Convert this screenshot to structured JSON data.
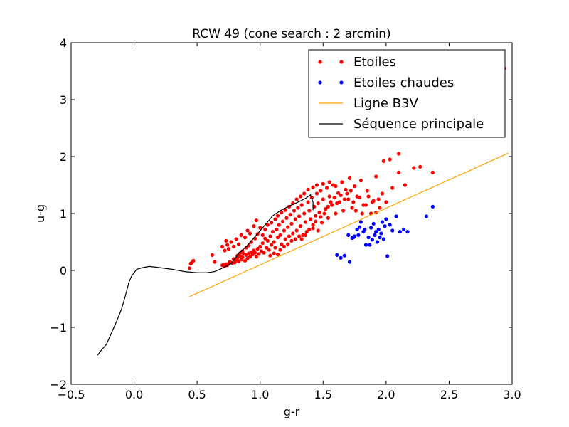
{
  "chart_data": {
    "type": "scatter",
    "title": "RCW 49 (cone search : 2 arcmin)",
    "xlabel": "g-r",
    "ylabel": "u-g",
    "xlim": [
      -0.5,
      3.0
    ],
    "ylim": [
      4,
      -2
    ],
    "y_inverted": true,
    "xticks": [
      -0.5,
      0.0,
      0.5,
      1.0,
      1.5,
      2.0,
      2.5,
      3.0
    ],
    "yticks": [
      -2,
      -1,
      0,
      1,
      2,
      3,
      4
    ],
    "xtick_labels": [
      "−0.5",
      "0.0",
      "0.5",
      "1.0",
      "1.5",
      "2.0",
      "2.5",
      "3.0"
    ],
    "ytick_labels": [
      "−2",
      "−1",
      "0",
      "1",
      "2",
      "3",
      "4"
    ],
    "grid": false,
    "legend_position": "top-right",
    "legend": [
      {
        "label": "Etoiles",
        "kind": "markers",
        "color": "#ff0000"
      },
      {
        "label": "Etoiles chaudes",
        "kind": "markers",
        "color": "#0000ff"
      },
      {
        "label": "Ligne B3V",
        "kind": "line",
        "color": "#ffa500"
      },
      {
        "label": "Séquence principale",
        "kind": "line",
        "color": "#000000"
      }
    ],
    "series": [
      {
        "name": "Etoiles",
        "kind": "scatter",
        "color": "#ff0000",
        "points": [
          [
            0.44,
            0.04
          ],
          [
            0.45,
            0.12
          ],
          [
            0.46,
            0.14
          ],
          [
            0.47,
            0.17
          ],
          [
            0.62,
            0.27
          ],
          [
            0.64,
            0.15
          ],
          [
            0.7,
            0.09
          ],
          [
            0.71,
            0.1
          ],
          [
            0.72,
            0.08
          ],
          [
            0.73,
            0.11
          ],
          [
            0.74,
            0.09
          ],
          [
            0.75,
            0.12
          ],
          [
            0.76,
            0.15
          ],
          [
            0.78,
            0.13
          ],
          [
            0.79,
            0.2
          ],
          [
            0.8,
            0.14
          ],
          [
            0.81,
            0.18
          ],
          [
            0.82,
            0.22
          ],
          [
            0.83,
            0.16
          ],
          [
            0.84,
            0.25
          ],
          [
            0.85,
            0.19
          ],
          [
            0.86,
            0.23
          ],
          [
            0.87,
            0.29
          ],
          [
            0.88,
            0.17
          ],
          [
            0.89,
            0.27
          ],
          [
            0.9,
            0.21
          ],
          [
            0.91,
            0.3
          ],
          [
            0.92,
            0.24
          ],
          [
            0.93,
            0.32
          ],
          [
            0.94,
            0.28
          ],
          [
            0.95,
            0.35
          ],
          [
            0.96,
            0.31
          ],
          [
            0.97,
            0.24
          ],
          [
            0.98,
            0.38
          ],
          [
            0.99,
            0.29
          ],
          [
            1.0,
            0.42
          ],
          [
            1.01,
            0.34
          ],
          [
            1.02,
            0.48
          ],
          [
            1.03,
            0.31
          ],
          [
            1.04,
            0.56
          ],
          [
            1.05,
            0.4
          ],
          [
            1.06,
            0.52
          ],
          [
            1.07,
            0.36
          ],
          [
            1.08,
            0.6
          ],
          [
            1.09,
            0.45
          ],
          [
            1.1,
            0.68
          ],
          [
            1.11,
            0.5
          ],
          [
            1.12,
            0.4
          ],
          [
            1.13,
            0.72
          ],
          [
            1.14,
            0.58
          ],
          [
            1.15,
            0.8
          ],
          [
            1.16,
            0.62
          ],
          [
            1.17,
            0.46
          ],
          [
            1.18,
            0.86
          ],
          [
            1.19,
            0.7
          ],
          [
            1.2,
            0.55
          ],
          [
            1.21,
            0.92
          ],
          [
            1.22,
            0.76
          ],
          [
            1.23,
            0.6
          ],
          [
            1.24,
            0.98
          ],
          [
            1.25,
            0.82
          ],
          [
            1.26,
            0.65
          ],
          [
            1.27,
            1.05
          ],
          [
            1.28,
            0.9
          ],
          [
            1.29,
            0.7
          ],
          [
            1.3,
            1.1
          ],
          [
            1.31,
            0.95
          ],
          [
            1.32,
            0.78
          ],
          [
            1.33,
            1.15
          ],
          [
            1.34,
            0.62
          ],
          [
            1.35,
            1.0
          ],
          [
            1.36,
            0.85
          ],
          [
            1.37,
            0.68
          ],
          [
            1.38,
            1.2
          ],
          [
            1.39,
            1.05
          ],
          [
            1.4,
            0.9
          ],
          [
            1.41,
            1.28
          ],
          [
            1.42,
            0.74
          ],
          [
            1.43,
            1.12
          ],
          [
            1.44,
            0.96
          ],
          [
            1.45,
            1.35
          ],
          [
            1.46,
            1.18
          ],
          [
            1.47,
            1.02
          ],
          [
            1.48,
            1.4
          ],
          [
            1.49,
            0.84
          ],
          [
            1.5,
            1.25
          ],
          [
            1.52,
            1.08
          ],
          [
            1.53,
            1.45
          ],
          [
            1.54,
            0.92
          ],
          [
            1.55,
            1.3
          ],
          [
            1.57,
            1.15
          ],
          [
            1.58,
            1.5
          ],
          [
            1.6,
            1.0
          ],
          [
            1.62,
            1.36
          ],
          [
            1.63,
            1.2
          ],
          [
            1.65,
            1.55
          ],
          [
            1.66,
            1.05
          ],
          [
            1.68,
            1.42
          ],
          [
            1.7,
            1.25
          ],
          [
            1.71,
            1.62
          ],
          [
            1.73,
            1.1
          ],
          [
            1.75,
            1.48
          ],
          [
            1.77,
            1.3
          ],
          [
            1.8,
            1.58
          ],
          [
            1.82,
            1.15
          ],
          [
            1.85,
            1.4
          ],
          [
            1.88,
            1.0
          ],
          [
            1.9,
            1.22
          ],
          [
            1.92,
            1.65
          ],
          [
            1.95,
            1.1
          ],
          [
            1.97,
            1.35
          ],
          [
            2.0,
            1.2
          ],
          [
            2.05,
            1.45
          ],
          [
            2.1,
            1.72
          ],
          [
            2.15,
            1.5
          ],
          [
            1.98,
            1.92
          ],
          [
            2.03,
            1.95
          ],
          [
            2.1,
            2.05
          ],
          [
            2.22,
            1.8
          ],
          [
            2.27,
            1.82
          ],
          [
            2.37,
            1.72
          ],
          [
            2.56,
            3.02
          ],
          [
            2.87,
            3.67
          ],
          [
            2.94,
            3.55
          ],
          [
            0.72,
            0.35
          ],
          [
            0.74,
            0.45
          ],
          [
            0.75,
            0.38
          ],
          [
            0.77,
            0.5
          ],
          [
            0.79,
            0.42
          ],
          [
            0.81,
            0.55
          ],
          [
            0.83,
            0.46
          ],
          [
            0.85,
            0.62
          ],
          [
            0.88,
            0.58
          ],
          [
            0.9,
            0.7
          ],
          [
            0.92,
            0.65
          ],
          [
            0.95,
            0.78
          ],
          [
            0.97,
            0.88
          ],
          [
            0.7,
            0.42
          ],
          [
            0.73,
            0.52
          ],
          [
            1.0,
            0.75
          ],
          [
            1.02,
            0.62
          ],
          [
            1.08,
            0.26
          ],
          [
            1.11,
            0.3
          ],
          [
            1.14,
            0.28
          ],
          [
            1.16,
            0.36
          ],
          [
            1.19,
            0.42
          ],
          [
            1.22,
            0.46
          ],
          [
            1.25,
            0.52
          ],
          [
            1.28,
            0.55
          ],
          [
            1.31,
            0.6
          ],
          [
            1.33,
            0.55
          ],
          [
            1.36,
            0.62
          ],
          [
            1.39,
            0.72
          ],
          [
            1.42,
            0.8
          ],
          [
            1.44,
            0.86
          ],
          [
            1.46,
            0.7
          ],
          [
            1.48,
            0.94
          ],
          [
            1.51,
            1.0
          ],
          [
            1.54,
            1.12
          ],
          [
            1.56,
            1.2
          ],
          [
            1.59,
            1.28
          ],
          [
            1.61,
            1.18
          ],
          [
            1.64,
            1.32
          ],
          [
            1.67,
            1.25
          ],
          [
            1.69,
            1.35
          ],
          [
            1.72,
            1.4
          ],
          [
            1.74,
            1.2
          ],
          [
            1.76,
            1.05
          ],
          [
            1.79,
            1.28
          ],
          [
            1.81,
            1.0
          ],
          [
            1.84,
            1.15
          ],
          [
            1.86,
            1.3
          ],
          [
            1.89,
            1.2
          ],
          [
            1.92,
            1.02
          ],
          [
            1.94,
            1.25
          ],
          [
            1.6,
            1.48
          ],
          [
            1.55,
            1.55
          ],
          [
            1.5,
            1.52
          ],
          [
            1.45,
            1.5
          ],
          [
            1.42,
            1.46
          ],
          [
            1.38,
            1.42
          ],
          [
            1.35,
            1.35
          ],
          [
            1.32,
            1.3
          ],
          [
            1.29,
            1.25
          ],
          [
            1.26,
            1.18
          ],
          [
            1.23,
            1.12
          ],
          [
            1.2,
            1.06
          ],
          [
            1.17,
            1.02
          ],
          [
            1.14,
            0.96
          ],
          [
            1.12,
            0.9
          ],
          [
            1.09,
            0.84
          ],
          [
            1.06,
            0.8
          ],
          [
            1.04,
            0.72
          ],
          [
            0.98,
            0.64
          ],
          [
            0.96,
            0.56
          ],
          [
            0.93,
            0.5
          ],
          [
            0.91,
            0.44
          ],
          [
            0.89,
            0.4
          ],
          [
            0.86,
            0.34
          ],
          [
            0.84,
            0.3
          ],
          [
            0.82,
            0.26
          ]
        ]
      },
      {
        "name": "Etoiles chaudes",
        "kind": "scatter",
        "color": "#0000ff",
        "points": [
          [
            1.61,
            0.27
          ],
          [
            1.64,
            0.22
          ],
          [
            1.67,
            0.26
          ],
          [
            1.71,
            0.15
          ],
          [
            1.75,
            0.6
          ],
          [
            1.74,
            0.58
          ],
          [
            1.77,
            0.72
          ],
          [
            1.78,
            0.62
          ],
          [
            1.79,
            0.76
          ],
          [
            1.8,
            0.85
          ],
          [
            1.82,
            0.68
          ],
          [
            1.83,
            0.72
          ],
          [
            1.84,
            0.45
          ],
          [
            1.86,
            0.58
          ],
          [
            1.87,
            0.45
          ],
          [
            1.88,
            0.75
          ],
          [
            1.89,
            0.54
          ],
          [
            1.9,
            0.82
          ],
          [
            1.91,
            0.62
          ],
          [
            1.92,
            0.68
          ],
          [
            1.93,
            0.5
          ],
          [
            1.94,
            0.72
          ],
          [
            1.95,
            0.58
          ],
          [
            1.96,
            0.65
          ],
          [
            1.97,
            0.85
          ],
          [
            1.98,
            0.55
          ],
          [
            1.99,
            0.78
          ],
          [
            2.0,
            0.9
          ],
          [
            2.01,
            0.25
          ],
          [
            2.03,
            0.8
          ],
          [
            2.05,
            0.7
          ],
          [
            2.08,
            0.95
          ],
          [
            2.11,
            0.68
          ],
          [
            2.14,
            0.72
          ],
          [
            2.17,
            0.68
          ],
          [
            2.32,
            0.95
          ],
          [
            2.37,
            1.12
          ],
          [
            1.7,
            0.62
          ],
          [
            1.73,
            0.57
          ]
        ]
      },
      {
        "name": "Ligne B3V",
        "kind": "line",
        "color": "#ffa500",
        "points": [
          [
            0.44,
            -0.46
          ],
          [
            2.97,
            2.06
          ]
        ]
      },
      {
        "name": "Séquence principale",
        "kind": "line",
        "color": "#000000",
        "points": [
          [
            -0.29,
            -1.49
          ],
          [
            -0.26,
            -1.4
          ],
          [
            -0.22,
            -1.3
          ],
          [
            -0.18,
            -1.1
          ],
          [
            -0.14,
            -0.9
          ],
          [
            -0.1,
            -0.68
          ],
          [
            -0.07,
            -0.45
          ],
          [
            -0.04,
            -0.2
          ],
          [
            -0.02,
            -0.1
          ],
          [
            0.02,
            0.02
          ],
          [
            0.07,
            0.05
          ],
          [
            0.12,
            0.07
          ],
          [
            0.2,
            0.05
          ],
          [
            0.3,
            0.02
          ],
          [
            0.4,
            -0.02
          ],
          [
            0.5,
            -0.04
          ],
          [
            0.58,
            -0.04
          ],
          [
            0.64,
            -0.02
          ],
          [
            0.7,
            0.04
          ],
          [
            0.77,
            0.12
          ],
          [
            0.83,
            0.3
          ],
          [
            0.9,
            0.44
          ],
          [
            0.97,
            0.62
          ],
          [
            1.04,
            0.8
          ],
          [
            1.1,
            0.96
          ],
          [
            1.16,
            1.05
          ],
          [
            1.24,
            1.14
          ],
          [
            1.32,
            1.22
          ],
          [
            1.37,
            1.28
          ],
          [
            1.4,
            1.33
          ],
          [
            1.42,
            1.2
          ],
          [
            1.42,
            1.06
          ]
        ]
      }
    ]
  }
}
